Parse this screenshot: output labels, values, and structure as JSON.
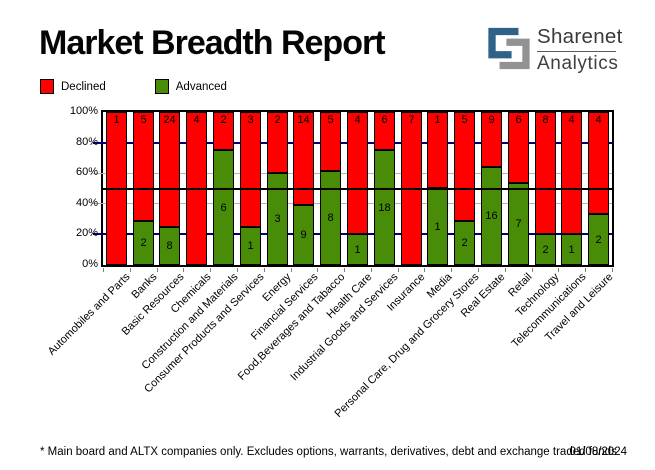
{
  "header": {
    "title": "Market Breadth Report"
  },
  "logo": {
    "brand_top": "Sharenet",
    "brand_bottom": "Analytics",
    "icon_blue": "#2f6289",
    "icon_gray": "#909294"
  },
  "legend": {
    "items": [
      {
        "label": "Declined",
        "color": "#ff0000"
      },
      {
        "label": "Advanced",
        "color": "#488c08"
      }
    ]
  },
  "chart_data": {
    "type": "bar",
    "variant": "stacked-percent-column",
    "title": "Market Breadth Report",
    "xlabel": "",
    "ylabel": "",
    "ylim": [
      0,
      100
    ],
    "y_ticks": [
      "100%",
      "80%",
      "60%",
      "40%",
      "20%",
      "0%"
    ],
    "legend_position": "top-left",
    "grid": {
      "navy_lines_pct": [
        80,
        20
      ],
      "gray_lines_pct": [
        60,
        40
      ],
      "black_line_pct": 50,
      "navy_color": "#000080",
      "gray_color": "#b4b4b4",
      "black_color": "#000000"
    },
    "categories": [
      "Automobiles and Parts",
      "Banks",
      "Basic Resources",
      "Chemicals",
      "Construction and Materials",
      "Consumer Products and Services",
      "Energy",
      "Financial Services",
      "Food,Beverages and Tabacco",
      "Health Care",
      "Industrial Goods and Services",
      "Insurance",
      "Media",
      "Personal Care, Drug and Grocery Stores",
      "Real Estate",
      "Retail",
      "Technology",
      "Telecommunications",
      "Travel and Leisure"
    ],
    "series": [
      {
        "name": "Declined",
        "color": "#ff0000",
        "values": [
          1,
          5,
          24,
          4,
          2,
          3,
          2,
          14,
          5,
          4,
          6,
          7,
          1,
          5,
          9,
          6,
          8,
          4,
          4
        ]
      },
      {
        "name": "Advanced",
        "color": "#488c08",
        "values": [
          0,
          2,
          8,
          0,
          6,
          1,
          3,
          9,
          8,
          1,
          18,
          0,
          1,
          2,
          16,
          7,
          2,
          1,
          2
        ]
      }
    ]
  },
  "footer": {
    "note": "* Main board and ALTX companies only. Excludes options, warrants, derivatives, debt and exchange traded funds",
    "date": "01/08/2024"
  }
}
